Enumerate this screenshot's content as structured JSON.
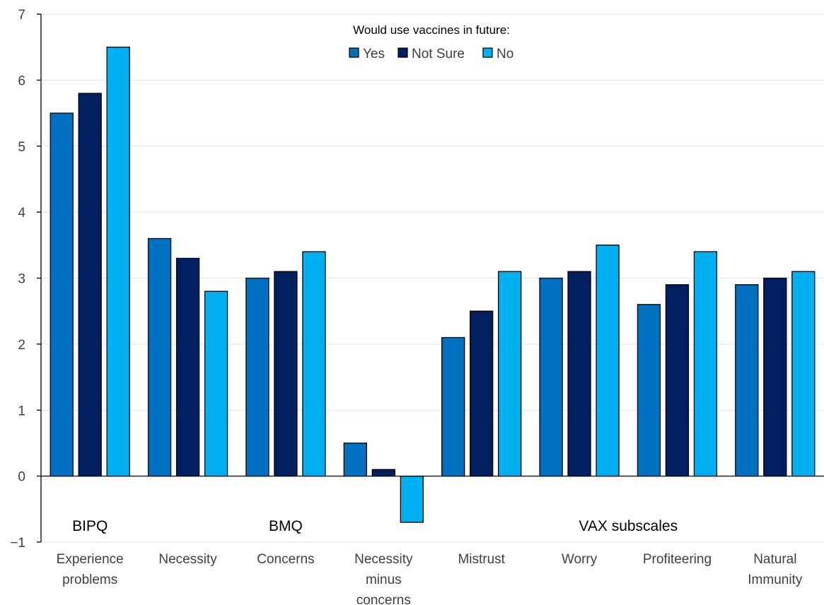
{
  "chart_data": {
    "type": "bar",
    "categories": [
      [
        "Experience",
        "problems"
      ],
      [
        "Necessity"
      ],
      [
        "Concerns"
      ],
      [
        "Necessity",
        "minus",
        "concerns"
      ],
      [
        "Mistrust"
      ],
      [
        "Worry"
      ],
      [
        "Profiteering"
      ],
      [
        "Natural",
        "Immunity"
      ]
    ],
    "series": [
      {
        "name": "Yes",
        "color": "#0070C0",
        "values": [
          5.5,
          3.6,
          3.0,
          0.5,
          2.1,
          3.0,
          2.6,
          2.9
        ]
      },
      {
        "name": "Not Sure",
        "color": "#002060",
        "values": [
          5.8,
          3.3,
          3.1,
          0.1,
          2.5,
          3.1,
          2.9,
          3.0
        ]
      },
      {
        "name": "No",
        "color": "#00B0F0",
        "values": [
          6.5,
          2.8,
          3.4,
          -0.7,
          3.1,
          3.5,
          3.4,
          3.1
        ]
      }
    ],
    "ylim": [
      -1,
      7
    ],
    "yticks": [
      -1,
      0,
      1,
      2,
      3,
      4,
      5,
      6,
      7
    ],
    "grid": true,
    "legend": {
      "title": "Would use vaccines in future:",
      "placement": "top-center"
    },
    "group_labels": [
      {
        "text": "BIPQ",
        "category_index": 0
      },
      {
        "text": "BMQ",
        "category_index": 2
      },
      {
        "text": "VAX subscales",
        "category_index": 5.5
      }
    ]
  }
}
